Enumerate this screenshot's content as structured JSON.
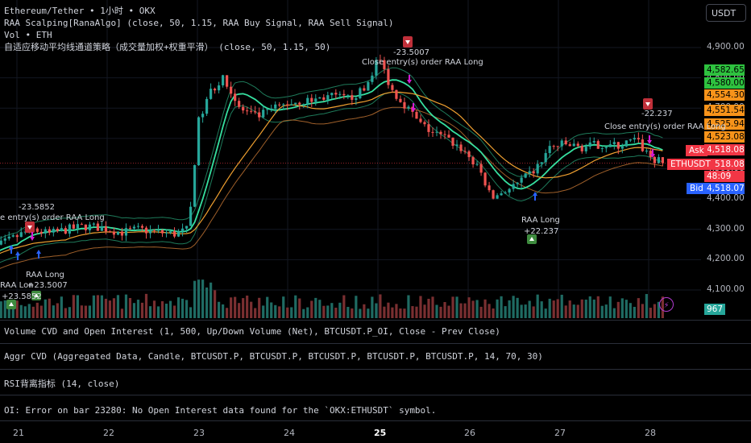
{
  "legend": {
    "line1": "Ethereum/Tether • 1小时 • OKX",
    "line2": "RAA Scalping[RanaAlgo] (close, 50, 1.15, RAA Buy Signal, RAA Sell Signal)",
    "line3": "Vol • ETH",
    "line4": "自适应移动平均线通道策略（成交量加权+权重平滑） (close, 50, 1.15, 50)"
  },
  "currency": "USDT",
  "panes": [
    {
      "label": "Volume CVD and Open Interest (1, 500, Up/Down Volume (Net), BTCUSDT.P_OI, Close - Prev Close)"
    },
    {
      "label": "Aggr CVD (Aggregated Data, Candle, BTCUSDT.P, BTCUSDT.P, BTCUSDT.P, BTCUSDT.P, BTCUSDT.P, 14, 70, 30)"
    },
    {
      "label": "RSI背离指标 (14, close)"
    },
    {
      "label": "OI: Error on bar 23280: No Open Interest data found for the `OKX:ETHUSDT` symbol."
    }
  ],
  "price_labels": [
    {
      "text": "4,582.65",
      "bg": "#2ec23f",
      "fg": "#000000"
    },
    {
      "text": "4,580.00",
      "bg": "#2ec23f",
      "fg": "#000000"
    },
    {
      "text": "4,554.30",
      "bg": "#f7931a",
      "fg": "#000000"
    },
    {
      "text": "4,551.54",
      "bg": "#f7931a",
      "fg": "#000000"
    },
    {
      "text": "4,525.94",
      "bg": "#f7931a",
      "fg": "#000000"
    },
    {
      "text": "4,523.08",
      "bg": "#f7931a",
      "fg": "#000000"
    },
    {
      "text": "4,518.08",
      "bg": "#f23645",
      "fg": "#ffffff"
    },
    {
      "text": "4,518.08",
      "bg": "#f23645",
      "fg": "#ffffff"
    },
    {
      "text": "48:09",
      "bg": "#f23645",
      "fg": "#ffffff"
    },
    {
      "text": "4,518.07",
      "bg": "#2962ff",
      "fg": "#ffffff"
    }
  ],
  "side_labels": {
    "ask": "Ask",
    "symbol": "ETHUSDT",
    "bid": "Bid"
  },
  "volume_badge": "967",
  "annotations": {
    "sell1_pnl": "-23.5007",
    "sell1_text": "Close entry(s) order RAA Long",
    "sell2_pnl": "-22.237",
    "sell2_text": "Close entry(s) order RAA Long",
    "sell0_pnl": "-23.5852",
    "sell0_text": "e entry(s) order RAA Long",
    "buy0_text": "RAA Long",
    "buy0_pnl": "+23.5852",
    "buy0b_text": "RAA Lon",
    "buy1_text": "RAA Long",
    "buy1_pnl": "+23.5007",
    "buy2_text": "RAA Long",
    "buy2_pnl": "+22.237",
    "bolt": "⚡"
  },
  "chart_data": {
    "type": "candlestick",
    "symbol": "ETHUSDT",
    "timeframe": "1小时",
    "y_ticks": [
      4100,
      4200,
      4300,
      4400,
      4500,
      4600,
      4700,
      4800,
      4900
    ],
    "y_tick_labels": [
      "4,100.00",
      "4,200.00",
      "4,300.00",
      "4,400.00",
      "4,500.00",
      "4,600.00",
      "4,700.00",
      "4,800.00",
      "4,900.00"
    ],
    "ylim": [
      4050,
      4960
    ],
    "x_ticks": [
      {
        "label": "21",
        "day": 21
      },
      {
        "label": "22",
        "day": 22
      },
      {
        "label": "23",
        "day": 23
      },
      {
        "label": "24",
        "day": 24
      },
      {
        "label": "25",
        "day": 25,
        "bold": true
      },
      {
        "label": "26",
        "day": 26
      },
      {
        "label": "27",
        "day": 27
      },
      {
        "label": "28",
        "day": 28
      }
    ],
    "xlim_days": [
      20.6,
      28.2
    ],
    "price_path": [
      [
        20.6,
        4190
      ],
      [
        20.8,
        4240
      ],
      [
        21.0,
        4270
      ],
      [
        21.2,
        4300
      ],
      [
        21.4,
        4285
      ],
      [
        21.6,
        4300
      ],
      [
        21.8,
        4310
      ],
      [
        22.0,
        4305
      ],
      [
        22.2,
        4290
      ],
      [
        22.4,
        4300
      ],
      [
        22.6,
        4290
      ],
      [
        22.8,
        4285
      ],
      [
        22.95,
        4300
      ],
      [
        23.05,
        4650
      ],
      [
        23.2,
        4760
      ],
      [
        23.35,
        4800
      ],
      [
        23.5,
        4700
      ],
      [
        23.7,
        4670
      ],
      [
        23.9,
        4700
      ],
      [
        24.1,
        4720
      ],
      [
        24.3,
        4725
      ],
      [
        24.5,
        4740
      ],
      [
        24.7,
        4730
      ],
      [
        24.9,
        4760
      ],
      [
        25.05,
        4870
      ],
      [
        25.2,
        4760
      ],
      [
        25.35,
        4710
      ],
      [
        25.5,
        4650
      ],
      [
        25.65,
        4620
      ],
      [
        25.8,
        4600
      ],
      [
        26.0,
        4560
      ],
      [
        26.2,
        4480
      ],
      [
        26.3,
        4400
      ],
      [
        26.4,
        4420
      ],
      [
        26.6,
        4450
      ],
      [
        26.8,
        4500
      ],
      [
        26.95,
        4570
      ],
      [
        27.1,
        4580
      ],
      [
        27.3,
        4570
      ],
      [
        27.5,
        4580
      ],
      [
        27.7,
        4575
      ],
      [
        27.9,
        4595
      ],
      [
        28.0,
        4560
      ],
      [
        28.1,
        4530
      ],
      [
        28.2,
        4518
      ]
    ],
    "current_price": 4518.08,
    "volume_scale_max": 2500
  }
}
